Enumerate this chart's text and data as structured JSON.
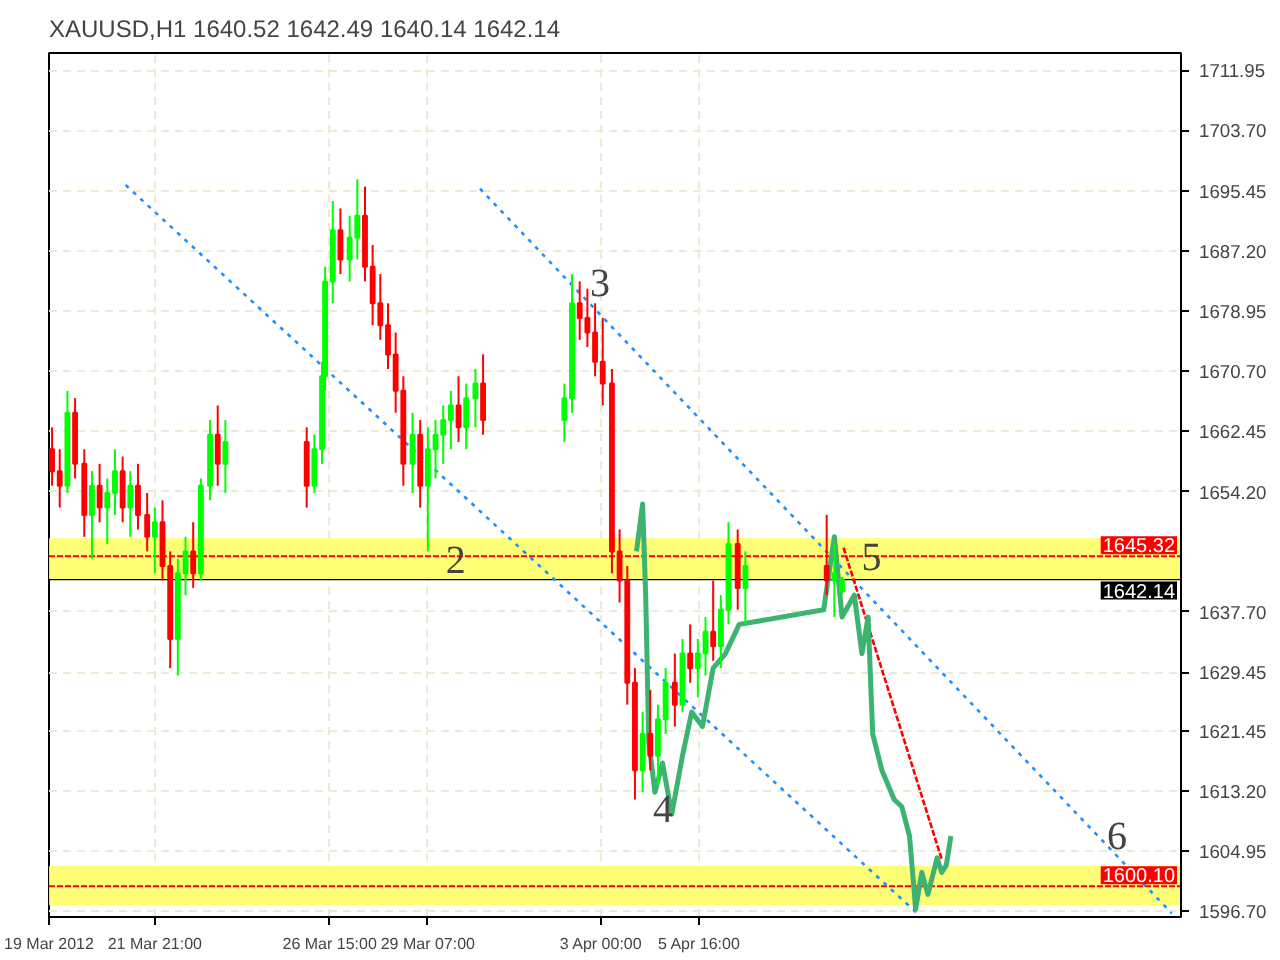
{
  "chart_data": {
    "type": "candlestick",
    "title": "XAUUSD,H1  1640.52 1642.49 1640.14 1642.14",
    "xlim": [
      "2012-03-19T00:00",
      "2012-04-18T18:00"
    ],
    "ylim": [
      1595.9,
      1714.3
    ],
    "xticks": [
      {
        "value": "2012-03-19T00:00",
        "label": "19 Mar 2012"
      },
      {
        "value": "2012-03-21T21:00",
        "label": "21 Mar 21:00"
      },
      {
        "value": "2012-03-26T15:00",
        "label": "26 Mar 15:00"
      },
      {
        "value": "2012-03-29T07:00",
        "label": "29 Mar 07:00"
      },
      {
        "value": "2012-04-03T00:00",
        "label": "3 Apr 00:00"
      },
      {
        "value": "2012-04-05T16:00",
        "label": "5 Apr 16:00"
      }
    ],
    "yticks": [
      1711.95,
      {
        "value": 1703.7,
        "label": "1703.70"
      },
      1695.45,
      {
        "value": 1687.2,
        "label": "1687.20"
      },
      1678.95,
      {
        "value": 1670.7,
        "label": "1670.70"
      },
      1662.45,
      {
        "value": 1654.2,
        "label": "1654.20"
      },
      {
        "value": 1637.7,
        "label": "1637.70"
      },
      1629.45,
      1621.45,
      {
        "value": 1613.2,
        "label": "1613.20"
      },
      1604.95,
      {
        "value": 1596.7,
        "label": "1596.70"
      }
    ],
    "grid": true,
    "series": [
      {
        "type": "line",
        "color": "#1e90ff",
        "line_style": "dotted",
        "x": [
          "2012-03-21T02:00",
          "2012-04-11T14:00"
        ],
        "values": [
          1696.2,
          1596.4
        ]
      },
      {
        "type": "line",
        "color": "#1e90ff",
        "line_style": "dotted",
        "x": [
          "2012-03-30T17:00",
          "2012-04-18T12:00"
        ],
        "values": [
          1695.7,
          1596.4
        ]
      },
      {
        "type": "line",
        "color": "#ff0000",
        "line_style": "dashed",
        "x": [
          "2012-04-09T14:00",
          "2012-04-12T06:00"
        ],
        "values": [
          1646.5,
          1603.8
        ]
      },
      {
        "type": "line",
        "color": "#3cb371",
        "x": [
          "2012-04-03T23:00",
          "2012-04-04T03:00",
          "2012-04-04T05:00",
          "2012-04-04T07:00",
          "2012-04-04T11:00",
          "2012-04-04T16:00",
          "2012-04-04T22:00",
          "2012-04-05T05:00",
          "2012-04-05T11:00",
          "2012-04-05T18:00",
          "2012-04-06T01:00",
          "2012-04-06T09:00",
          "2012-04-06T18:00",
          "2012-04-09T01:00",
          "2012-04-09T08:00",
          "2012-04-09T13:00",
          "2012-04-09T21:00",
          "2012-04-10T02:00",
          "2012-04-10T06:00",
          "2012-04-10T09:00",
          "2012-04-10T15:00",
          "2012-04-10T23:00",
          "2012-04-11T04:00",
          "2012-04-11T09:00",
          "2012-04-11T13:00",
          "2012-04-11T17:00",
          "2012-04-11T21:00",
          "2012-04-12T03:00",
          "2012-04-12T06:00",
          "2012-04-12T09:00",
          "2012-04-12T12:00"
        ],
        "values": [
          1646,
          1652.5,
          1640,
          1620,
          1613,
          1617,
          1610,
          1618,
          1624,
          1622,
          1630,
          1632,
          1636,
          1638,
          1648,
          1637,
          1640,
          1632,
          1637,
          1621,
          1616,
          1612,
          1611,
          1607,
          1597,
          1602,
          1599,
          1604,
          1602,
          1603,
          1607
        ]
      },
      {
        "x": [
          "2012-03-19T02:00",
          "2012-03-19T07:00",
          "2012-03-19T12:00",
          "2012-03-19T17:00",
          "2012-03-19T23:00",
          "2012-03-20T04:00",
          "2012-03-20T09:00",
          "2012-03-20T14:00",
          "2012-03-20T19:00",
          "2012-03-21T00:00",
          "2012-03-21T05:00",
          "2012-03-21T10:00",
          "2012-03-21T16:00",
          "2012-03-21T21:00",
          "2012-03-22T02:00",
          "2012-03-22T07:00",
          "2012-03-22T12:00",
          "2012-03-22T17:00",
          "2012-03-22T22:00",
          "2012-03-23T03:00",
          "2012-03-23T09:00",
          "2012-03-23T14:00",
          "2012-03-23T19:00",
          "2012-03-26T00:00",
          "2012-03-26T05:00",
          "2012-03-26T10:00",
          "2012-03-26T12:00",
          "2012-03-26T17:00",
          "2012-03-26T22:00",
          "2012-03-27T04:00",
          "2012-03-27T09:00",
          "2012-03-27T14:00",
          "2012-03-27T19:00",
          "2012-03-28T00:00",
          "2012-03-28T05:00",
          "2012-03-28T10:00",
          "2012-03-28T15:00",
          "2012-03-28T21:00",
          "2012-03-29T02:00",
          "2012-03-29T07:00",
          "2012-03-29T12:00",
          "2012-03-29T17:00",
          "2012-03-29T22:00",
          "2012-03-30T03:00",
          "2012-03-30T08:00",
          "2012-03-30T14:00",
          "2012-03-30T19:00",
          "2012-04-02T00:00",
          "2012-04-02T05:00",
          "2012-04-02T10:00",
          "2012-04-02T15:00",
          "2012-04-02T20:00",
          "2012-04-03T01:00",
          "2012-04-03T07:00",
          "2012-04-03T12:00",
          "2012-04-03T17:00",
          "2012-04-03T22:00",
          "2012-04-04T03:00",
          "2012-04-04T08:00",
          "2012-04-04T13:00",
          "2012-04-04T18:00",
          "2012-04-05T00:00",
          "2012-04-05T05:00",
          "2012-04-05T10:00",
          "2012-04-05T15:00",
          "2012-04-05T20:00",
          "2012-04-06T01:00",
          "2012-04-06T06:00",
          "2012-04-06T11:00",
          "2012-04-06T17:00",
          "2012-04-06T22:00",
          "2012-04-09T03:00",
          "2012-04-09T08:00",
          "2012-04-09T13:00"
        ],
        "ohlc": [
          [
            1660,
            1663,
            1655,
            1657
          ],
          [
            1657,
            1660,
            1652,
            1655
          ],
          [
            1655,
            1668,
            1654,
            1665
          ],
          [
            1665,
            1667,
            1656,
            1658
          ],
          [
            1658,
            1660,
            1648,
            1651
          ],
          [
            1651,
            1657,
            1645,
            1655
          ],
          [
            1655,
            1658,
            1650,
            1652
          ],
          [
            1652,
            1656,
            1647,
            1654
          ],
          [
            1654,
            1660,
            1651,
            1657
          ],
          [
            1657,
            1659,
            1650,
            1652
          ],
          [
            1652,
            1657,
            1648,
            1655
          ],
          [
            1655,
            1658,
            1649,
            1651
          ],
          [
            1651,
            1654,
            1646,
            1648
          ],
          [
            1648,
            1652,
            1643,
            1650
          ],
          [
            1650,
            1653,
            1642,
            1644
          ],
          [
            1644,
            1646,
            1630,
            1634
          ],
          [
            1634,
            1645,
            1629,
            1643
          ],
          [
            1643,
            1648,
            1640,
            1646
          ],
          [
            1646,
            1650,
            1641,
            1643
          ],
          [
            1643,
            1656,
            1642,
            1655
          ],
          [
            1655,
            1664,
            1653,
            1662
          ],
          [
            1662,
            1666,
            1655,
            1658
          ],
          [
            1658,
            1664,
            1654,
            1661
          ],
          [
            1661,
            1663,
            1652,
            1655
          ],
          [
            1655,
            1662,
            1654,
            1660
          ],
          [
            1660,
            1672,
            1658,
            1670
          ],
          [
            1670,
            1685,
            1668,
            1683
          ],
          [
            1683,
            1694,
            1680,
            1690
          ],
          [
            1690,
            1693,
            1684,
            1686
          ],
          [
            1686,
            1692,
            1683,
            1689
          ],
          [
            1689,
            1697,
            1686,
            1692
          ],
          [
            1692,
            1696,
            1683,
            1685
          ],
          [
            1685,
            1688,
            1677,
            1680
          ],
          [
            1680,
            1684,
            1675,
            1677
          ],
          [
            1677,
            1680,
            1671,
            1673
          ],
          [
            1673,
            1676,
            1665,
            1668
          ],
          [
            1668,
            1670,
            1655,
            1658
          ],
          [
            1658,
            1665,
            1654,
            1662
          ],
          [
            1662,
            1664,
            1652,
            1655
          ],
          [
            1655,
            1663,
            1646,
            1660
          ],
          [
            1660,
            1664,
            1656,
            1662
          ],
          [
            1662,
            1666,
            1658,
            1664
          ],
          [
            1664,
            1668,
            1660,
            1666
          ],
          [
            1666,
            1670,
            1661,
            1663
          ],
          [
            1663,
            1669,
            1660,
            1667
          ],
          [
            1667,
            1671,
            1663,
            1669
          ],
          [
            1669,
            1673,
            1662,
            1664
          ],
          [
            1664,
            1669,
            1661,
            1667
          ],
          [
            1667,
            1684,
            1665,
            1680
          ],
          [
            1680,
            1683,
            1675,
            1678
          ],
          [
            1678,
            1682,
            1674,
            1676
          ],
          [
            1676,
            1680,
            1670,
            1672
          ],
          [
            1672,
            1678,
            1666,
            1669
          ],
          [
            1669,
            1671,
            1643,
            1646
          ],
          [
            1646,
            1649,
            1639,
            1642
          ],
          [
            1642,
            1644,
            1625,
            1628
          ],
          [
            1628,
            1630,
            1612,
            1616
          ],
          [
            1616,
            1624,
            1613,
            1621
          ],
          [
            1621,
            1627,
            1616,
            1618
          ],
          [
            1618,
            1625,
            1614,
            1623
          ],
          [
            1623,
            1630,
            1621,
            1628
          ],
          [
            1628,
            1632,
            1622,
            1625
          ],
          [
            1625,
            1634,
            1624,
            1632
          ],
          [
            1632,
            1636,
            1628,
            1630
          ],
          [
            1630,
            1634,
            1626,
            1632
          ],
          [
            1632,
            1637,
            1629,
            1635
          ],
          [
            1635,
            1642,
            1631,
            1633
          ],
          [
            1633,
            1640,
            1630,
            1638
          ],
          [
            1638,
            1650,
            1636,
            1647
          ],
          [
            1647,
            1649,
            1638,
            1641
          ],
          [
            1641,
            1646,
            1636,
            1644
          ],
          [
            1644,
            1651,
            1640,
            1642
          ],
          [
            1642,
            1647,
            1637,
            1643
          ],
          [
            1640.52,
            1642.49,
            1640.14,
            1642.14
          ]
        ],
        "colors": [
          "#ff0000",
          "#ff0000",
          "#00ff00",
          "#ff0000",
          "#ff0000",
          "#00ff00",
          "#ff0000",
          "#00ff00",
          "#00ff00",
          "#ff0000",
          "#00ff00",
          "#ff0000",
          "#ff0000",
          "#00ff00",
          "#ff0000",
          "#ff0000",
          "#00ff00",
          "#00ff00",
          "#ff0000",
          "#00ff00",
          "#00ff00",
          "#ff0000",
          "#00ff00",
          "#ff0000",
          "#00ff00",
          "#00ff00",
          "#00ff00",
          "#00ff00",
          "#ff0000",
          "#00ff00",
          "#00ff00",
          "#ff0000",
          "#ff0000",
          "#ff0000",
          "#ff0000",
          "#ff0000",
          "#ff0000",
          "#00ff00",
          "#ff0000",
          "#00ff00",
          "#00ff00",
          "#00ff00",
          "#00ff00",
          "#ff0000",
          "#00ff00",
          "#00ff00",
          "#ff0000",
          "#00ff00",
          "#00ff00",
          "#ff0000",
          "#ff0000",
          "#ff0000",
          "#ff0000",
          "#ff0000",
          "#ff0000",
          "#ff0000",
          "#ff0000",
          "#00ff00",
          "#ff0000",
          "#00ff00",
          "#00ff00",
          "#ff0000",
          "#00ff00",
          "#ff0000",
          "#00ff00",
          "#00ff00",
          "#ff0000",
          "#00ff00",
          "#00ff00",
          "#ff0000",
          "#00ff00",
          "#ff0000",
          "#00ff00",
          "#00ff00"
        ]
      }
    ],
    "ref_lines": [
      {
        "axis": "y",
        "value": 1645.32,
        "label": "1645.32",
        "color": "#ff0000",
        "line_style": "dashed"
      },
      {
        "axis": "y",
        "value": 1642.14,
        "label": "1642.14",
        "color": "#000000",
        "line_style": "solid"
      },
      {
        "axis": "y",
        "value": 1600.1,
        "label": "1600.10",
        "color": "#ff0000",
        "line_style": "dashed"
      }
    ],
    "bands": [
      {
        "axis": "y",
        "from": 1642.1,
        "to": 1647.8,
        "color": "#ffff66"
      },
      {
        "axis": "y",
        "from": 1597.5,
        "to": 1602.9,
        "color": "#ffff66"
      }
    ],
    "annotations": [
      {
        "text": "2",
        "x": "2012-03-29T07:00",
        "y": 1646
      },
      {
        "text": "3",
        "x": "2012-04-02T05:00",
        "y": 1684
      },
      {
        "text": "4",
        "x": "2012-04-03T22:00",
        "y": 1612
      },
      {
        "text": "5",
        "x": "2012-04-09T14:00",
        "y": 1646.5
      },
      {
        "text": "6",
        "x": "2012-04-16T06:00",
        "y": 1608.3
      }
    ]
  }
}
